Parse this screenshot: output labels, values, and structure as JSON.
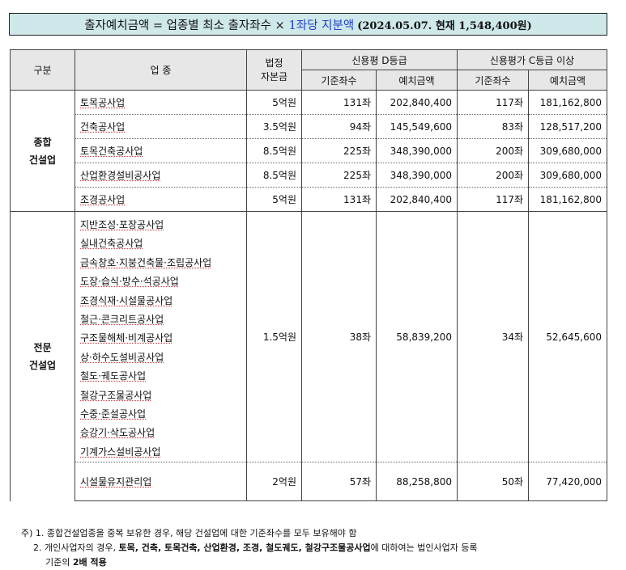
{
  "title": {
    "left": "출자예치금액 =  업종별 최소 출자좌수 ×",
    "highlight": "1좌당 지분액",
    "detail": "(2024.05.07. 현재 1,548,400원)"
  },
  "headers": {
    "category": "구분",
    "industry": "업 종",
    "capital_line1": "법정",
    "capital_line2": "자본금",
    "grade_d": "신용평 D등급",
    "grade_c": "신용평가 C등급 이상",
    "base_units": "기준좌수",
    "deposit": "예치금액",
    "base_units2": "기준좌수",
    "deposit2": "예치금액"
  },
  "general": {
    "category_line1": "종합",
    "category_line2": "건설업",
    "rows": [
      {
        "name": "토목공사업",
        "capital": "5억원",
        "d_units": "131좌",
        "d_amount": "202,840,400",
        "c_units": "117좌",
        "c_amount": "181,162,800"
      },
      {
        "name": "건축공사업",
        "capital": "3.5억원",
        "d_units": "94좌",
        "d_amount": "145,549,600",
        "c_units": "83좌",
        "c_amount": "128,517,200"
      },
      {
        "name": "토목건축공사업",
        "capital": "8.5억원",
        "d_units": "225좌",
        "d_amount": "348,390,000",
        "c_units": "200좌",
        "c_amount": "309,680,000"
      },
      {
        "name": "산업환경설비공사업",
        "capital": "8.5억원",
        "d_units": "225좌",
        "d_amount": "348,390,000",
        "c_units": "200좌",
        "c_amount": "309,680,000"
      },
      {
        "name": "조경공사업",
        "capital": "5억원",
        "d_units": "131좌",
        "d_amount": "202,840,400",
        "c_units": "117좌",
        "c_amount": "181,162,800"
      }
    ]
  },
  "special": {
    "category_line1": "전문",
    "category_line2": "건설업",
    "group_industries": [
      "지반조성·포장공사업",
      "실내건축공사업",
      "금속창호·지붕건축물·조립공사업",
      "도장·습식·방수·석공사업",
      "조경식재·시설물공사업",
      "철근·콘크리트공사업",
      "구조물해체·비계공사업",
      "상·하수도설비공사업",
      "철도·궤도공사업",
      "철강구조물공사업",
      "수중·준설공사업",
      "승강기·삭도공사업",
      "기계가스설비공사업"
    ],
    "group": {
      "capital": "1.5억원",
      "d_units": "38좌",
      "d_amount": "58,839,200",
      "c_units": "34좌",
      "c_amount": "52,645,600"
    },
    "last": {
      "name": "시설물유지관리업",
      "capital": "2억원",
      "d_units": "57좌",
      "d_amount": "88,258,800",
      "c_units": "50좌",
      "c_amount": "77,420,000"
    }
  },
  "notes": {
    "line1": "주) 1. 종합건설업종을 중복 보유한 경우, 해당 건설업에 대한 기준좌수를 모두 보유해야 함",
    "line2_prefix": "2. 개인사업자의 경우,",
    "line2_bold": "토목, 건축, 토목건축, 산업환경, 조경, 철도궤도, 철강구조물공사업",
    "line2_suffix": "에 대하여는 법인사업자 등록",
    "line3_prefix": "기준의",
    "line3_bold": "2배 적용"
  }
}
